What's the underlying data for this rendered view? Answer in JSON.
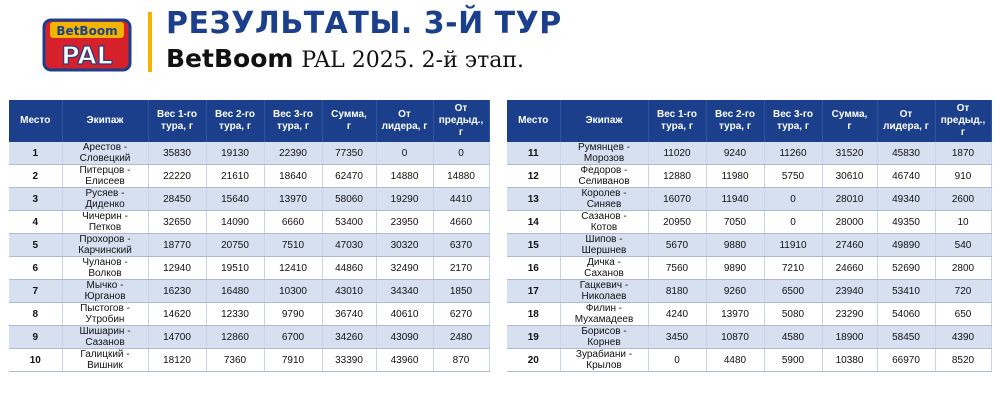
{
  "header": {
    "logo_line1": "BetBoom",
    "logo_line2": "PAL",
    "title": "РЕЗУЛЬТАТЫ. 3-Й ТУР",
    "subtitle_brand": "BetBoom",
    "subtitle_rest": "PAL 2025. 2-й этап.",
    "colors": {
      "title": "#1b3f8b",
      "accent": "#f2b400",
      "logo_red": "#d6202a"
    }
  },
  "columns": {
    "place": "Место",
    "crew": "Экипаж",
    "w1_a": "Вес 1-го",
    "w1_b": "тура, г",
    "w2_a": "Вес 2-го",
    "w2_b": "тура, г",
    "w3_a": "Вес 3-го",
    "w3_b": "тура, г",
    "sum_a": "Сумма,",
    "sum_b": "г",
    "leader_a": "От",
    "leader_b": "лидера, г",
    "prev_a": "От",
    "prev_b": "предыд., г"
  },
  "rows": [
    {
      "place": "1",
      "crew_a": "Арестов -",
      "crew_b": "Словецкий",
      "w1": "35830",
      "w2": "19130",
      "w3": "22390",
      "sum": "77350",
      "leader": "0",
      "prev": "0"
    },
    {
      "place": "2",
      "crew_a": "Питерцов -",
      "crew_b": "Елисеев",
      "w1": "22220",
      "w2": "21610",
      "w3": "18640",
      "sum": "62470",
      "leader": "14880",
      "prev": "14880"
    },
    {
      "place": "3",
      "crew_a": "Русяев -",
      "crew_b": "Диденко",
      "w1": "28450",
      "w2": "15640",
      "w3": "13970",
      "sum": "58060",
      "leader": "19290",
      "prev": "4410"
    },
    {
      "place": "4",
      "crew_a": "Чичерин -",
      "crew_b": "Петков",
      "w1": "32650",
      "w2": "14090",
      "w3": "6660",
      "sum": "53400",
      "leader": "23950",
      "prev": "4660"
    },
    {
      "place": "5",
      "crew_a": "Прохоров -",
      "crew_b": "Карчинский",
      "w1": "18770",
      "w2": "20750",
      "w3": "7510",
      "sum": "47030",
      "leader": "30320",
      "prev": "6370"
    },
    {
      "place": "6",
      "crew_a": "Чуланов -",
      "crew_b": "Волков",
      "w1": "12940",
      "w2": "19510",
      "w3": "12410",
      "sum": "44860",
      "leader": "32490",
      "prev": "2170"
    },
    {
      "place": "7",
      "crew_a": "Мычко -",
      "crew_b": "Юрганов",
      "w1": "16230",
      "w2": "16480",
      "w3": "10300",
      "sum": "43010",
      "leader": "34340",
      "prev": "1850"
    },
    {
      "place": "8",
      "crew_a": "Пыстогов -",
      "crew_b": "Утробин",
      "w1": "14620",
      "w2": "12330",
      "w3": "9790",
      "sum": "36740",
      "leader": "40610",
      "prev": "6270"
    },
    {
      "place": "9",
      "crew_a": "Шишарин -",
      "crew_b": "Сазанов",
      "w1": "14700",
      "w2": "12860",
      "w3": "6700",
      "sum": "34260",
      "leader": "43090",
      "prev": "2480"
    },
    {
      "place": "10",
      "crew_a": "Галицкий -",
      "crew_b": "Вишник",
      "w1": "18120",
      "w2": "7360",
      "w3": "7910",
      "sum": "33390",
      "leader": "43960",
      "prev": "870"
    },
    {
      "place": "11",
      "crew_a": "Румянцев -",
      "crew_b": "Морозов",
      "w1": "11020",
      "w2": "9240",
      "w3": "11260",
      "sum": "31520",
      "leader": "45830",
      "prev": "1870"
    },
    {
      "place": "12",
      "crew_a": "Федоров -",
      "crew_b": "Селиванов",
      "w1": "12880",
      "w2": "11980",
      "w3": "5750",
      "sum": "30610",
      "leader": "46740",
      "prev": "910"
    },
    {
      "place": "13",
      "crew_a": "Королев -",
      "crew_b": "Синяев",
      "w1": "16070",
      "w2": "11940",
      "w3": "0",
      "sum": "28010",
      "leader": "49340",
      "prev": "2600"
    },
    {
      "place": "14",
      "crew_a": "Сазанов -",
      "crew_b": "Котов",
      "w1": "20950",
      "w2": "7050",
      "w3": "0",
      "sum": "28000",
      "leader": "49350",
      "prev": "10"
    },
    {
      "place": "15",
      "crew_a": "Шипов -",
      "crew_b": "Шершнев",
      "w1": "5670",
      "w2": "9880",
      "w3": "11910",
      "sum": "27460",
      "leader": "49890",
      "prev": "540"
    },
    {
      "place": "16",
      "crew_a": "Дичка -",
      "crew_b": "Саханов",
      "w1": "7560",
      "w2": "9890",
      "w3": "7210",
      "sum": "24660",
      "leader": "52690",
      "prev": "2800"
    },
    {
      "place": "17",
      "crew_a": "Гацкевич -",
      "crew_b": "Николаев",
      "w1": "8180",
      "w2": "9260",
      "w3": "6500",
      "sum": "23940",
      "leader": "53410",
      "prev": "720"
    },
    {
      "place": "18",
      "crew_a": "Филин -",
      "crew_b": "Мухамадеев",
      "w1": "4240",
      "w2": "13970",
      "w3": "5080",
      "sum": "23290",
      "leader": "54060",
      "prev": "650"
    },
    {
      "place": "19",
      "crew_a": "Борисов -",
      "crew_b": "Корнев",
      "w1": "3450",
      "w2": "10870",
      "w3": "4580",
      "sum": "18900",
      "leader": "58450",
      "prev": "4390"
    },
    {
      "place": "20",
      "crew_a": "Зурабиани -",
      "crew_b": "Крылов",
      "w1": "0",
      "w2": "4480",
      "w3": "5900",
      "sum": "10380",
      "leader": "66970",
      "prev": "8520"
    }
  ]
}
